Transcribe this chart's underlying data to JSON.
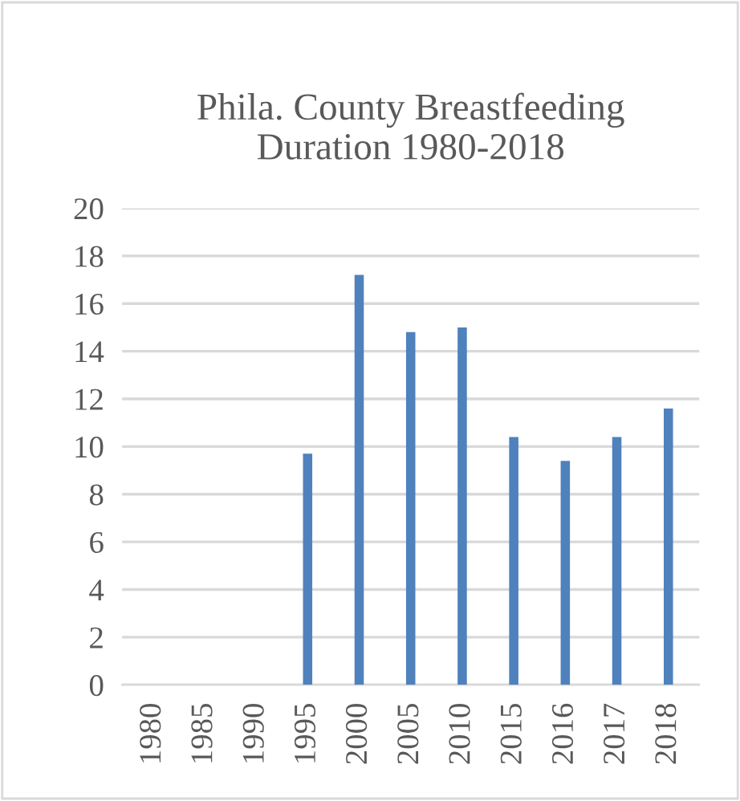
{
  "chart_data": {
    "type": "bar",
    "title": "Phila. County Breastfeeding\nDuration 1980-2018",
    "categories": [
      "1980",
      "1985",
      "1990",
      "1995",
      "2000",
      "2005",
      "2010",
      "2015",
      "2016",
      "2017",
      "2018"
    ],
    "values": [
      null,
      null,
      null,
      9.7,
      17.2,
      14.8,
      15.0,
      10.4,
      9.4,
      10.4,
      11.6
    ],
    "color": "#4f81bd",
    "ylim": [
      0,
      20
    ],
    "yticks": [
      0,
      2,
      4,
      6,
      8,
      10,
      12,
      14,
      16,
      18,
      20
    ],
    "grid": "y"
  }
}
